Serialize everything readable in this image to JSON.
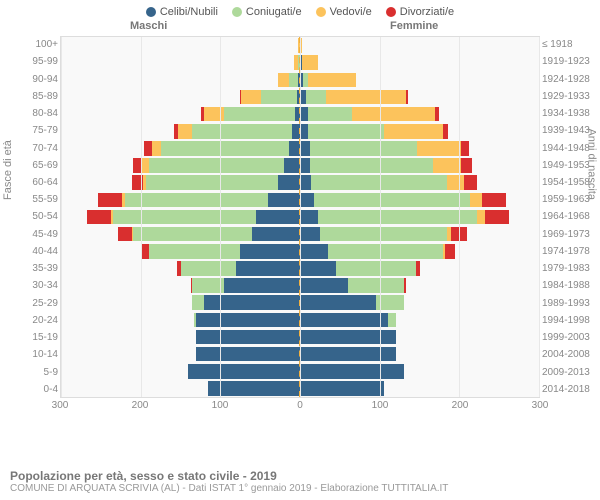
{
  "chart": {
    "type": "population-pyramid",
    "title": "Popolazione per età, sesso e stato civile - 2019",
    "subtitle": "COMUNE DI ARQUATA SCRIVIA (AL) - Dati ISTAT 1° gennaio 2019 - Elaborazione TUTTITALIA.IT",
    "male_label": "Maschi",
    "female_label": "Femmine",
    "y_axis_left_title": "Fasce di età",
    "y_axis_right_title": "Anni di nascita",
    "x_max": 300,
    "x_ticks": [
      300,
      200,
      100,
      0,
      100,
      200,
      300
    ],
    "background_color": "#f9f9f9",
    "grid_color": "#e8e8e8",
    "center_line_color": "#f0b040",
    "text_color": "#888888",
    "categories": [
      {
        "key": "celibi",
        "label": "Celibi/Nubili",
        "color": "#36648b"
      },
      {
        "key": "coniugati",
        "label": "Coniugati/e",
        "color": "#aed99b"
      },
      {
        "key": "vedovi",
        "label": "Vedovi/e",
        "color": "#fcc35c"
      },
      {
        "key": "divorziati",
        "label": "Divorziati/e",
        "color": "#d92f2f"
      }
    ],
    "age_bands": [
      {
        "age": "100+",
        "birth": "≤ 1918",
        "male": {
          "celibi": 0,
          "coniugati": 0,
          "vedovi": 3,
          "divorziati": 0
        },
        "female": {
          "celibi": 0,
          "coniugati": 0,
          "vedovi": 3,
          "divorziati": 0
        }
      },
      {
        "age": "95-99",
        "birth": "1919-1923",
        "male": {
          "celibi": 0,
          "coniugati": 3,
          "vedovi": 5,
          "divorziati": 0
        },
        "female": {
          "celibi": 2,
          "coniugati": 0,
          "vedovi": 20,
          "divorziati": 0
        }
      },
      {
        "age": "90-94",
        "birth": "1924-1928",
        "male": {
          "celibi": 2,
          "coniugati": 12,
          "vedovi": 14,
          "divorziati": 0
        },
        "female": {
          "celibi": 4,
          "coniugati": 6,
          "vedovi": 60,
          "divorziati": 0
        }
      },
      {
        "age": "85-89",
        "birth": "1929-1933",
        "male": {
          "celibi": 4,
          "coniugati": 45,
          "vedovi": 25,
          "divorziati": 2
        },
        "female": {
          "celibi": 8,
          "coniugati": 25,
          "vedovi": 100,
          "divorziati": 2
        }
      },
      {
        "age": "80-84",
        "birth": "1934-1938",
        "male": {
          "celibi": 6,
          "coniugati": 90,
          "vedovi": 25,
          "divorziati": 3
        },
        "female": {
          "celibi": 10,
          "coniugati": 55,
          "vedovi": 105,
          "divorziati": 4
        }
      },
      {
        "age": "75-79",
        "birth": "1939-1943",
        "male": {
          "celibi": 10,
          "coniugati": 125,
          "vedovi": 18,
          "divorziati": 5
        },
        "female": {
          "celibi": 10,
          "coniugati": 95,
          "vedovi": 75,
          "divorziati": 6
        }
      },
      {
        "age": "70-74",
        "birth": "1944-1948",
        "male": {
          "celibi": 14,
          "coniugati": 160,
          "vedovi": 12,
          "divorziati": 10
        },
        "female": {
          "celibi": 12,
          "coniugati": 135,
          "vedovi": 55,
          "divorziati": 10
        }
      },
      {
        "age": "65-69",
        "birth": "1949-1953",
        "male": {
          "celibi": 20,
          "coniugati": 170,
          "vedovi": 8,
          "divorziati": 12
        },
        "female": {
          "celibi": 12,
          "coniugati": 155,
          "vedovi": 35,
          "divorziati": 14
        }
      },
      {
        "age": "60-64",
        "birth": "1954-1958",
        "male": {
          "celibi": 28,
          "coniugati": 165,
          "vedovi": 4,
          "divorziati": 14
        },
        "female": {
          "celibi": 14,
          "coniugati": 170,
          "vedovi": 22,
          "divorziati": 16
        }
      },
      {
        "age": "55-59",
        "birth": "1959-1963",
        "male": {
          "celibi": 40,
          "coniugati": 180,
          "vedovi": 3,
          "divorziati": 30
        },
        "female": {
          "celibi": 18,
          "coniugati": 195,
          "vedovi": 15,
          "divorziati": 30
        }
      },
      {
        "age": "50-54",
        "birth": "1964-1968",
        "male": {
          "celibi": 55,
          "coniugati": 180,
          "vedovi": 2,
          "divorziati": 30
        },
        "female": {
          "celibi": 22,
          "coniugati": 200,
          "vedovi": 10,
          "divorziati": 30
        }
      },
      {
        "age": "45-49",
        "birth": "1969-1973",
        "male": {
          "celibi": 60,
          "coniugati": 150,
          "vedovi": 1,
          "divorziati": 18
        },
        "female": {
          "celibi": 25,
          "coniugati": 160,
          "vedovi": 5,
          "divorziati": 20
        }
      },
      {
        "age": "40-44",
        "birth": "1974-1978",
        "male": {
          "celibi": 75,
          "coniugati": 115,
          "vedovi": 0,
          "divorziati": 10
        },
        "female": {
          "celibi": 35,
          "coniugati": 145,
          "vedovi": 2,
          "divorziati": 12
        }
      },
      {
        "age": "35-39",
        "birth": "1979-1983",
        "male": {
          "celibi": 80,
          "coniugati": 70,
          "vedovi": 0,
          "divorziati": 5
        },
        "female": {
          "celibi": 45,
          "coniugati": 100,
          "vedovi": 0,
          "divorziati": 6
        }
      },
      {
        "age": "30-34",
        "birth": "1984-1988",
        "male": {
          "celibi": 95,
          "coniugati": 40,
          "vedovi": 0,
          "divorziati": 2
        },
        "female": {
          "celibi": 60,
          "coniugati": 70,
          "vedovi": 0,
          "divorziati": 3
        }
      },
      {
        "age": "25-29",
        "birth": "1989-1993",
        "male": {
          "celibi": 120,
          "coniugati": 15,
          "vedovi": 0,
          "divorziati": 0
        },
        "female": {
          "celibi": 95,
          "coniugati": 35,
          "vedovi": 0,
          "divorziati": 0
        }
      },
      {
        "age": "20-24",
        "birth": "1994-1998",
        "male": {
          "celibi": 130,
          "coniugati": 3,
          "vedovi": 0,
          "divorziati": 0
        },
        "female": {
          "celibi": 110,
          "coniugati": 10,
          "vedovi": 0,
          "divorziati": 0
        }
      },
      {
        "age": "15-19",
        "birth": "1999-2003",
        "male": {
          "celibi": 130,
          "coniugati": 0,
          "vedovi": 0,
          "divorziati": 0
        },
        "female": {
          "celibi": 120,
          "coniugati": 0,
          "vedovi": 0,
          "divorziati": 0
        }
      },
      {
        "age": "10-14",
        "birth": "2004-2008",
        "male": {
          "celibi": 130,
          "coniugati": 0,
          "vedovi": 0,
          "divorziati": 0
        },
        "female": {
          "celibi": 120,
          "coniugati": 0,
          "vedovi": 0,
          "divorziati": 0
        }
      },
      {
        "age": "5-9",
        "birth": "2009-2013",
        "male": {
          "celibi": 140,
          "coniugati": 0,
          "vedovi": 0,
          "divorziati": 0
        },
        "female": {
          "celibi": 130,
          "coniugati": 0,
          "vedovi": 0,
          "divorziati": 0
        }
      },
      {
        "age": "0-4",
        "birth": "2014-2018",
        "male": {
          "celibi": 115,
          "coniugati": 0,
          "vedovi": 0,
          "divorziati": 0
        },
        "female": {
          "celibi": 105,
          "coniugati": 0,
          "vedovi": 0,
          "divorziati": 0
        }
      }
    ]
  }
}
